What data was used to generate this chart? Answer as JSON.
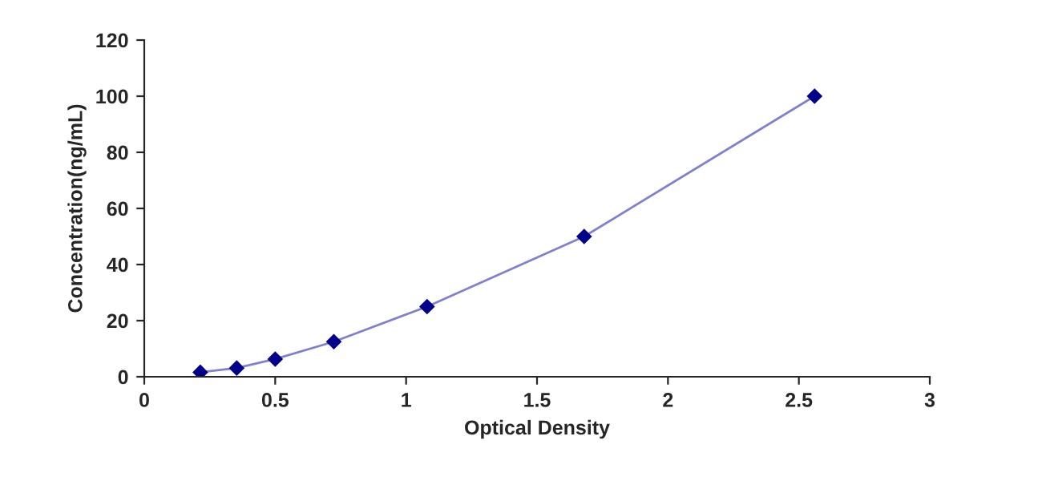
{
  "chart_data": {
    "type": "line",
    "xlabel": "Optical Density",
    "ylabel": "Concentration(ng/mL)",
    "x": [
      0.214,
      0.353,
      0.5,
      0.724,
      1.08,
      1.68,
      2.56
    ],
    "series": [
      {
        "color": "#00008b",
        "values": [
          1.6,
          3.1,
          6.3,
          12.5,
          25,
          50,
          100
        ]
      }
    ],
    "xlim": [
      0,
      3
    ],
    "xticks": [
      0,
      0.5,
      1,
      1.5,
      2,
      2.5,
      3
    ],
    "ylim": [
      0,
      120
    ],
    "yticks": [
      0,
      20,
      40,
      60,
      80,
      100,
      120
    ],
    "grid": false,
    "marker": "diamond",
    "line_style": "solid"
  }
}
